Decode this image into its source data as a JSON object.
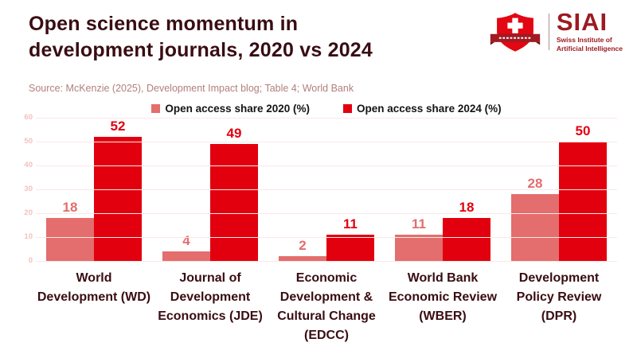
{
  "header": {
    "title_lines": [
      "Open science momentum in",
      "development journals, 2020 vs 2024"
    ],
    "logo": {
      "brand": "SIAI",
      "tagline_lines": [
        "Swiss Institute of",
        "Artificial Intelligence"
      ]
    }
  },
  "source_note": "Source: McKenzie (2025), Development Impact blog; Table 4; World Bank",
  "colors": {
    "title_text": "#390D12",
    "source_text": "#B0807C",
    "brand_red": "#9C1B21",
    "shield_red": "#E30613",
    "banner_dark_red": "#A01B22",
    "series_2020": "#E46D6D",
    "series_2024": "#E2000F",
    "gridline": "#FBE7E7",
    "y_tick": "#F3C0C0",
    "legend_text": "#141414"
  },
  "chart_data": {
    "type": "bar",
    "title": "Open science momentum in development journals, 2020 vs 2024",
    "categories": [
      "World Development (WD)",
      "Journal of Development Economics (JDE)",
      "Economic Development & Cultural Change (EDCC)",
      "World Bank Economic Review (WBER)",
      "Development Policy Review (DPR)"
    ],
    "series": [
      {
        "name": "Open access share 2020 (%)",
        "color": "#E46D6D",
        "values": [
          18,
          4,
          2,
          11,
          28
        ]
      },
      {
        "name": "Open access share 2024 (%)",
        "color": "#E2000F",
        "values": [
          52,
          49,
          11,
          18,
          50
        ]
      }
    ],
    "xlabel": "",
    "ylabel": "",
    "ylim": [
      0,
      60
    ],
    "yticks": [
      0,
      10,
      20,
      30,
      40,
      50,
      60
    ],
    "grid": true,
    "legend_position": "top center",
    "value_labels": true
  }
}
